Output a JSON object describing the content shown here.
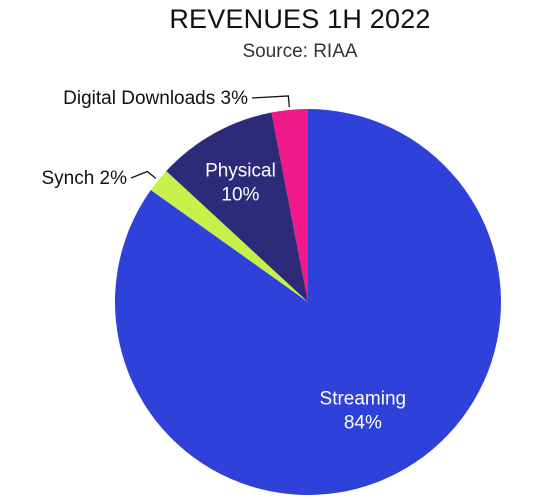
{
  "chart_data": {
    "type": "pie",
    "title": "REVENUES 1H 2022",
    "subtitle": "Source: RIAA",
    "slices": [
      {
        "label": "Streaming",
        "display": "84%",
        "value": 84,
        "color": "#2e41d8",
        "label_position": "inside"
      },
      {
        "label": "Synch",
        "display": "2%",
        "value": 2,
        "color": "#c6f14a",
        "label_position": "outside"
      },
      {
        "label": "Physical",
        "display": "10%",
        "value": 10,
        "color": "#2e2a7a",
        "label_position": "inside"
      },
      {
        "label": "Digital Downloads",
        "display": "3%",
        "value": 3,
        "color": "#f0198a",
        "label_position": "outside"
      }
    ],
    "order": "clockwise from top, Streaming first"
  }
}
